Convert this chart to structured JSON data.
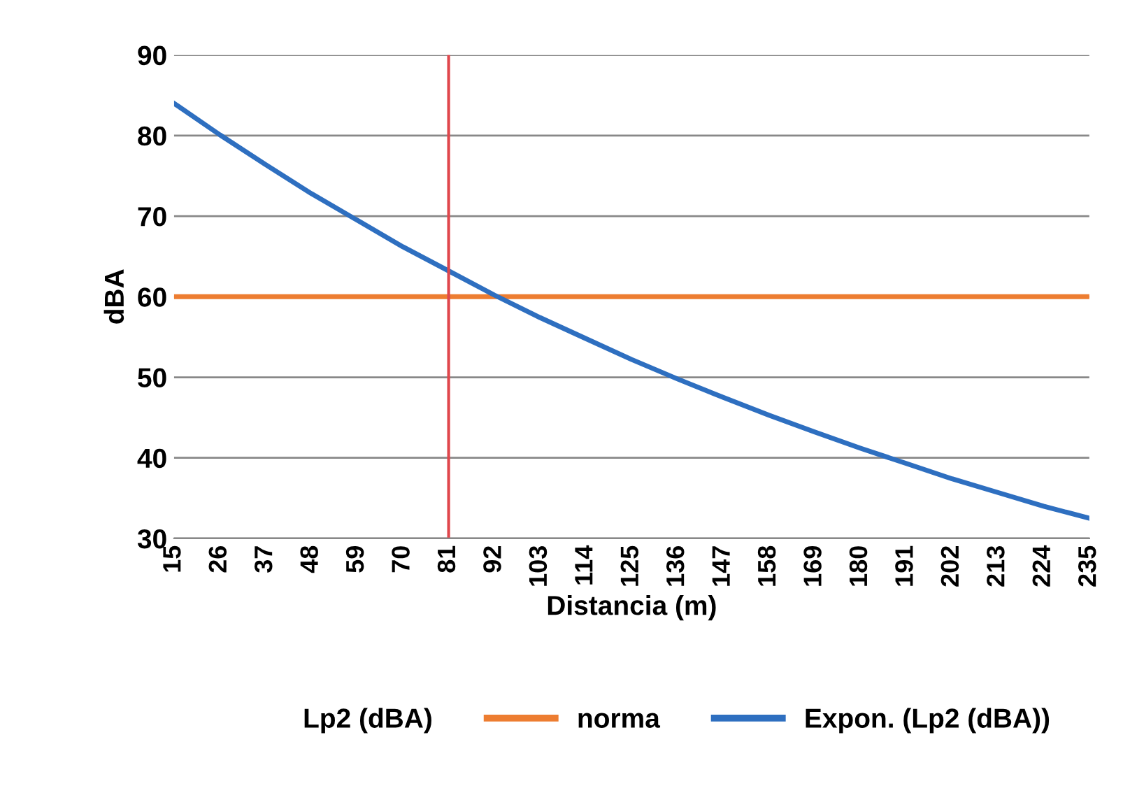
{
  "chart_data": {
    "type": "line",
    "xlabel": "Distancia (m)",
    "ylabel": "dBA",
    "categories": [
      "15",
      "26",
      "37",
      "48",
      "59",
      "70",
      "81",
      "92",
      "103",
      "114",
      "125",
      "136",
      "147",
      "158",
      "169",
      "180",
      "191",
      "202",
      "213",
      "224",
      "235"
    ],
    "series": [
      {
        "name": "Lp2 (dBA)",
        "values": [
          null,
          null,
          null,
          null,
          null,
          null,
          null,
          null,
          null,
          null,
          null,
          null,
          null,
          null,
          null,
          null,
          null,
          null,
          null,
          null,
          null
        ]
      },
      {
        "name": "norma",
        "color": "#ed7d31",
        "values": [
          60,
          60,
          60,
          60,
          60,
          60,
          60,
          60,
          60,
          60,
          60,
          60,
          60,
          60,
          60,
          60,
          60,
          60,
          60,
          60,
          60
        ]
      },
      {
        "name": "Expon. (Lp2 (dBA))",
        "color": "#2e6fc0",
        "values": [
          84.0,
          80.1,
          76.4,
          72.8,
          69.5,
          66.2,
          63.2,
          60.2,
          57.4,
          54.8,
          52.2,
          49.8,
          47.5,
          45.3,
          43.2,
          41.2,
          39.3,
          37.4,
          35.7,
          34.0,
          32.5
        ]
      }
    ],
    "ref_lines": [
      {
        "axis": "x",
        "value": "81",
        "color": "#e0474c"
      }
    ],
    "ylim": [
      30,
      90
    ],
    "yticks": [
      30,
      40,
      50,
      60,
      70,
      80,
      90
    ],
    "grid": "y",
    "legend": "bottom",
    "marker": "none",
    "line_style": "solid"
  }
}
